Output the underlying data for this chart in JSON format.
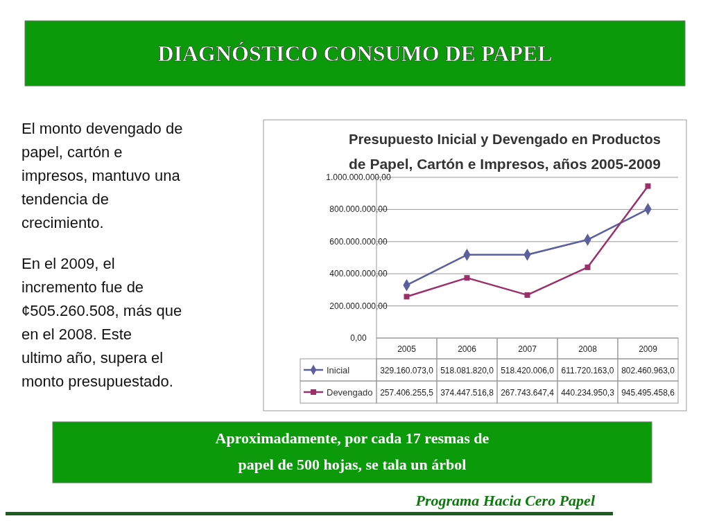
{
  "chart_data": {
    "type": "line",
    "title": "Presupuesto Inicial y Devengado en Productos de Papel, Cartón e Impresos, años 2005-2009",
    "annotations": [
      "DIAGNÓSTICO CONSUMO DE PAPEL",
      "El monto devengado de papel, cartón e impresos, mantuvo una tendencia de crecimiento.",
      "En el 2009, el incremento fue de ¢505.260.508, más que en el 2008.  Este ultimo año, supera el monto presupuestado.",
      "Aproximadamente, por cada 17 resmas de papel de 500 hojas, se tala un árbol",
      "Programa Hacia Cero Papel"
    ],
    "categories": [
      "2005",
      "2006",
      "2007",
      "2008",
      "2009"
    ],
    "series": [
      {
        "name": "Inicial",
        "color": "#5b5f9e",
        "marker": "diamond",
        "values": [
          329160073.0,
          518081820.0,
          518420006.0,
          611720163.0,
          802460963.0
        ],
        "value_labels": [
          "329.160.073,0",
          "518.081.820,0",
          "518.420.006,0",
          "611.720.163,0",
          "802.460.963,0"
        ]
      },
      {
        "name": "Devengado",
        "color": "#9b2f6a",
        "marker": "square",
        "values": [
          257406255.5,
          374447516.8,
          267743647.4,
          440234950.3,
          945495458.6
        ],
        "value_labels": [
          "257.406.255,5",
          "374.447.516,8",
          "267.743.647,4",
          "440.234.950,3",
          "945.495.458,6"
        ]
      }
    ],
    "ylim": [
      0,
      1000000000
    ],
    "yticks": [
      {
        "value": 0,
        "label": "0,00"
      },
      {
        "value": 200000000,
        "label": "200.000.000,00"
      },
      {
        "value": 400000000,
        "label": "400.000.000,00"
      },
      {
        "value": 600000000,
        "label": "600.000.000,00"
      },
      {
        "value": 800000000,
        "label": "800.000.000,00"
      },
      {
        "value": 1000000000,
        "label": "1.000.000.000,00"
      }
    ],
    "grid": "y",
    "legend": "bottom"
  }
}
